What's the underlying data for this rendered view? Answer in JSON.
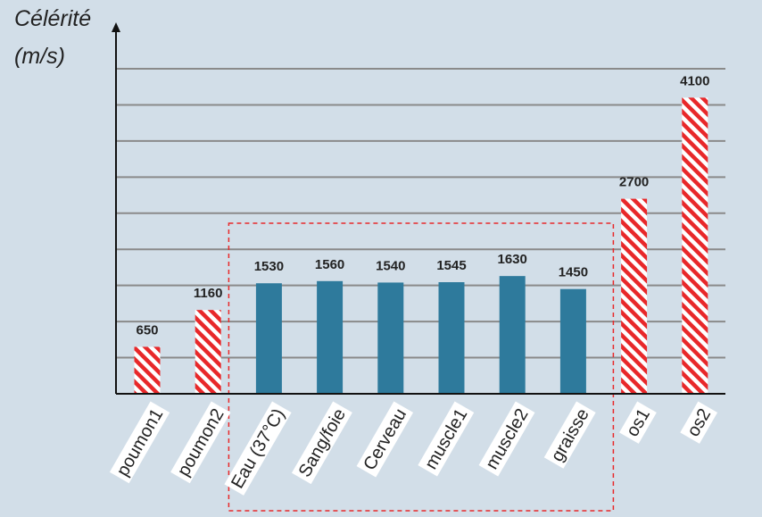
{
  "chart_data": {
    "type": "bar",
    "title": "",
    "xlabel": "",
    "ylabel": [
      "Célérité",
      "(m/s)"
    ],
    "categories": [
      "poumon1",
      "poumon2",
      "Eau (37°C)",
      "Sang/foie",
      "Cerveau",
      "muscle1",
      "muscle2",
      "graisse",
      "os1",
      "os2"
    ],
    "values": [
      650,
      1160,
      1530,
      1560,
      1540,
      1545,
      1630,
      1450,
      2700,
      4100
    ],
    "value_labels": [
      "650",
      "1160",
      "1530",
      "1560",
      "1540",
      "1545",
      "1630",
      "1450",
      "2700",
      "4100"
    ],
    "bar_styles": [
      "hatched",
      "hatched",
      "solid",
      "solid",
      "solid",
      "solid",
      "solid",
      "solid",
      "hatched",
      "hatched"
    ],
    "ylim": [
      0,
      4500
    ],
    "y_gridline_step": 500,
    "y_tick_labels_shown": false,
    "grid": true,
    "highlight_box": {
      "around_categories": [
        "Eau (37°C)",
        "Sang/foie",
        "Cerveau",
        "muscle1",
        "muscle2",
        "graisse"
      ],
      "style": "dashed",
      "color": "#e8282a"
    },
    "colors": {
      "background": "#d2dee8",
      "solid_bar": "#2e7a9c",
      "hatch_red": "#e8282a",
      "hatch_white": "#ffffff",
      "gridline": "#8a8a8a",
      "axis": "#111111",
      "label_box": "#ffffff"
    }
  }
}
